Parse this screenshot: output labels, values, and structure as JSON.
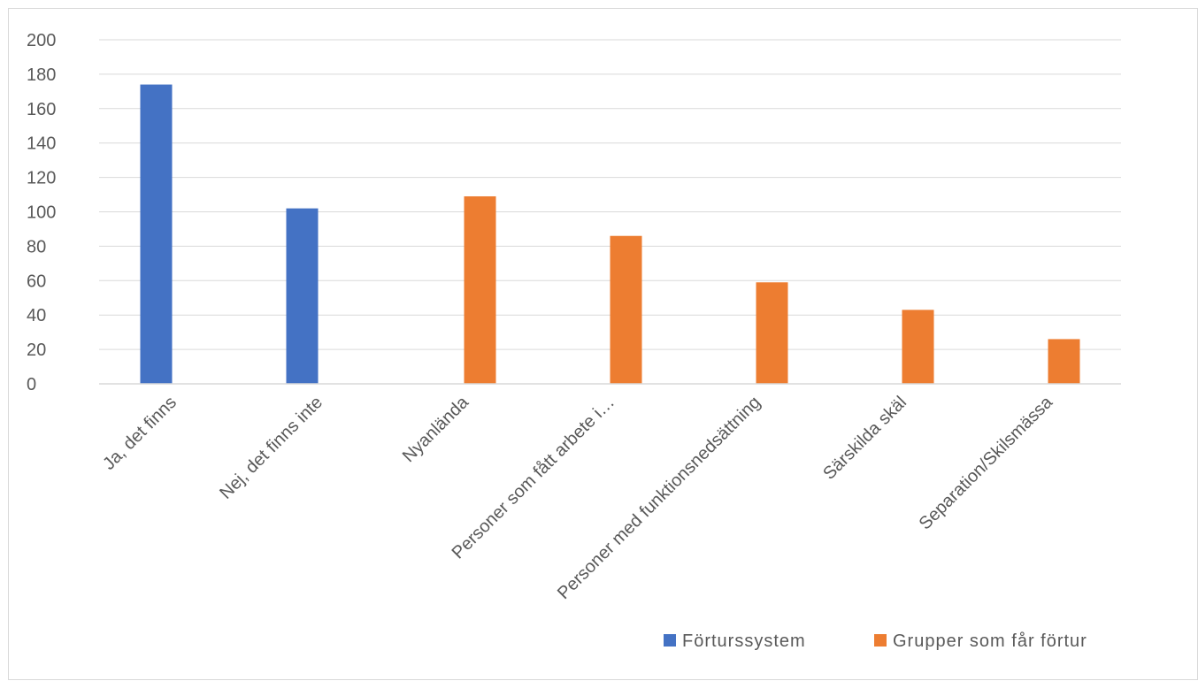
{
  "chart_data": {
    "type": "bar",
    "categories": [
      "Ja, det finns",
      "Nej, det finns inte",
      "Nyanlända",
      "Personer som fått arbete i…",
      "Personer med funktionsnedsättning",
      "Särskilda skäl",
      "Separation/Skilsmässa"
    ],
    "series": [
      {
        "name": "Förturssystem",
        "color": "#4472C4",
        "values": [
          174,
          102,
          null,
          null,
          null,
          null,
          null
        ]
      },
      {
        "name": "Grupper som får förtur",
        "color": "#ED7D31",
        "values": [
          null,
          null,
          109,
          86,
          59,
          43,
          26
        ]
      }
    ],
    "y_ticks": [
      "0",
      "20",
      "40",
      "60",
      "80",
      "100",
      "120",
      "140",
      "160",
      "180",
      "200"
    ],
    "ylim": [
      0,
      200
    ],
    "ytick_step": 20,
    "grid": true,
    "legend_position": "bottom-right",
    "title": "",
    "xlabel": "",
    "ylabel": ""
  }
}
